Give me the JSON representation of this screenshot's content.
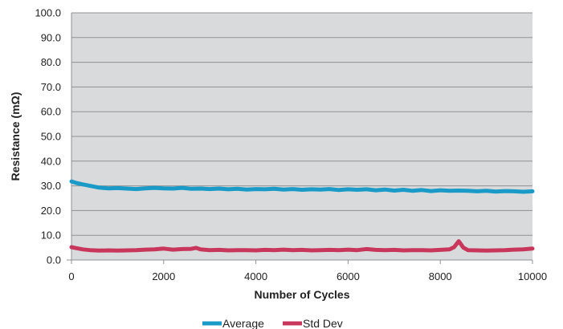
{
  "chart_data": {
    "type": "line",
    "xlabel": "Number of Cycles",
    "ylabel": "Resistance (mΩ)",
    "xlim": [
      0,
      10000
    ],
    "ylim": [
      0,
      100
    ],
    "x_ticks": [
      "0",
      "2000",
      "4000",
      "6000",
      "8000",
      "10000"
    ],
    "y_ticks": [
      "0.0",
      "10.0",
      "20.0",
      "30.0",
      "40.0",
      "50.0",
      "60.0",
      "70.0",
      "80.0",
      "90.0",
      "100.0"
    ],
    "grid": true,
    "plot_background": "#d9dadc",
    "legend_position": "bottom",
    "series": [
      {
        "name": "Average",
        "color": "#1a9ac6",
        "x": [
          0,
          100,
          250,
          400,
          600,
          800,
          1000,
          1200,
          1400,
          1600,
          1800,
          2000,
          2200,
          2400,
          2600,
          2800,
          3000,
          3200,
          3400,
          3600,
          3800,
          4000,
          4200,
          4400,
          4600,
          4800,
          5000,
          5200,
          5400,
          5600,
          5800,
          6000,
          6200,
          6400,
          6600,
          6800,
          7000,
          7200,
          7400,
          7600,
          7800,
          8000,
          8200,
          8400,
          8600,
          8800,
          9000,
          9200,
          9400,
          9600,
          9800,
          10000
        ],
        "y": [
          31.8,
          31.2,
          30.6,
          30.0,
          29.3,
          29.0,
          29.1,
          28.9,
          28.7,
          29.0,
          29.2,
          29.0,
          28.9,
          29.2,
          28.8,
          28.9,
          28.7,
          28.9,
          28.6,
          28.8,
          28.5,
          28.7,
          28.6,
          28.8,
          28.5,
          28.7,
          28.4,
          28.6,
          28.5,
          28.7,
          28.3,
          28.6,
          28.4,
          28.6,
          28.2,
          28.5,
          28.1,
          28.4,
          28.0,
          28.3,
          27.9,
          28.2,
          28.0,
          28.1,
          28.0,
          27.8,
          28.0,
          27.7,
          27.9,
          27.8,
          27.6,
          27.8
        ]
      },
      {
        "name": "Std Dev",
        "color": "#c8365c",
        "x": [
          0,
          100,
          250,
          400,
          600,
          800,
          1000,
          1200,
          1400,
          1600,
          1800,
          2000,
          2200,
          2400,
          2600,
          2700,
          2800,
          3000,
          3200,
          3400,
          3600,
          3800,
          4000,
          4200,
          4400,
          4600,
          4800,
          5000,
          5200,
          5400,
          5600,
          5800,
          6000,
          6200,
          6400,
          6600,
          6800,
          7000,
          7200,
          7400,
          7600,
          7800,
          8000,
          8200,
          8300,
          8400,
          8500,
          8600,
          8800,
          9000,
          9200,
          9400,
          9600,
          9800,
          10000
        ],
        "y": [
          5.2,
          4.8,
          4.3,
          4.0,
          3.8,
          3.9,
          3.8,
          3.9,
          4.0,
          4.2,
          4.3,
          4.6,
          4.2,
          4.4,
          4.5,
          4.9,
          4.3,
          4.0,
          4.1,
          3.9,
          4.0,
          4.0,
          3.9,
          4.1,
          4.0,
          4.2,
          4.0,
          4.1,
          3.9,
          4.0,
          4.1,
          4.0,
          4.2,
          4.0,
          4.4,
          4.1,
          4.0,
          4.1,
          3.9,
          4.0,
          4.0,
          3.9,
          4.1,
          4.3,
          5.2,
          7.6,
          5.0,
          4.0,
          3.9,
          3.8,
          3.9,
          4.0,
          4.2,
          4.3,
          4.6
        ]
      }
    ]
  }
}
